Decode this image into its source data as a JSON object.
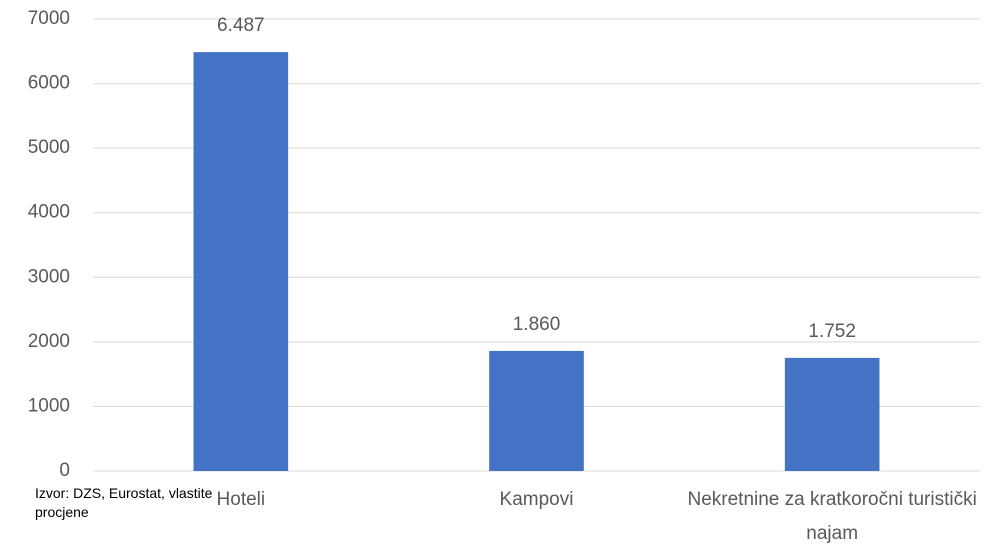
{
  "chart_data": {
    "type": "bar",
    "categories": [
      "Hoteli",
      "Kampovi",
      "Nekretnine za kratkoročni turistički najam"
    ],
    "values": [
      6487,
      1860,
      1752
    ],
    "value_labels": [
      "6.487",
      "1.860",
      "1.752"
    ],
    "color": "#4472c4",
    "ylim": [
      0,
      7000
    ],
    "yticks": [
      0,
      1000,
      2000,
      3000,
      4000,
      5000,
      6000,
      7000
    ],
    "grid": true,
    "note": "Izvor: DZS, Eurostat, vlastite procjene"
  }
}
